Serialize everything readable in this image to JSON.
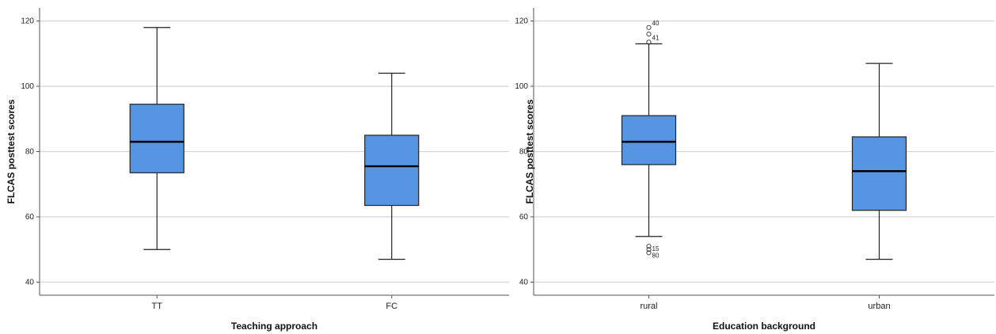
{
  "chart_data": [
    {
      "type": "box",
      "xlabel": "Teaching approach",
      "ylabel": "FLCAS posttest scores",
      "ylim": [
        36,
        124
      ],
      "yticks": [
        40,
        60,
        80,
        100,
        120
      ],
      "grid": true,
      "box_color": "#5595e4",
      "categories": [
        "TT",
        "FC"
      ],
      "boxes": [
        {
          "category": "TT",
          "min": 50,
          "q1": 73.5,
          "median": 83,
          "q3": 94.5,
          "max": 118,
          "outliers": []
        },
        {
          "category": "FC",
          "min": 47,
          "q1": 63.5,
          "median": 75.5,
          "q3": 85,
          "max": 104,
          "outliers": []
        }
      ]
    },
    {
      "type": "box",
      "xlabel": "Education background",
      "ylabel": "FLCAS posttest scores",
      "ylim": [
        36,
        124
      ],
      "yticks": [
        40,
        60,
        80,
        100,
        120
      ],
      "grid": true,
      "box_color": "#5595e4",
      "categories": [
        "rural",
        "urban"
      ],
      "boxes": [
        {
          "category": "rural",
          "min": 54,
          "q1": 76,
          "median": 83,
          "q3": 91,
          "max": 113,
          "outliers": [
            {
              "value": 118,
              "label": "40"
            },
            {
              "value": 116,
              "label": ""
            },
            {
              "value": 113.5,
              "label": "41"
            },
            {
              "value": 51,
              "label": "15"
            },
            {
              "value": 50,
              "label": ""
            },
            {
              "value": 49,
              "label": "80"
            }
          ]
        },
        {
          "category": "urban",
          "min": 47,
          "q1": 62,
          "median": 74,
          "q3": 84.5,
          "max": 107,
          "outliers": []
        }
      ]
    }
  ]
}
